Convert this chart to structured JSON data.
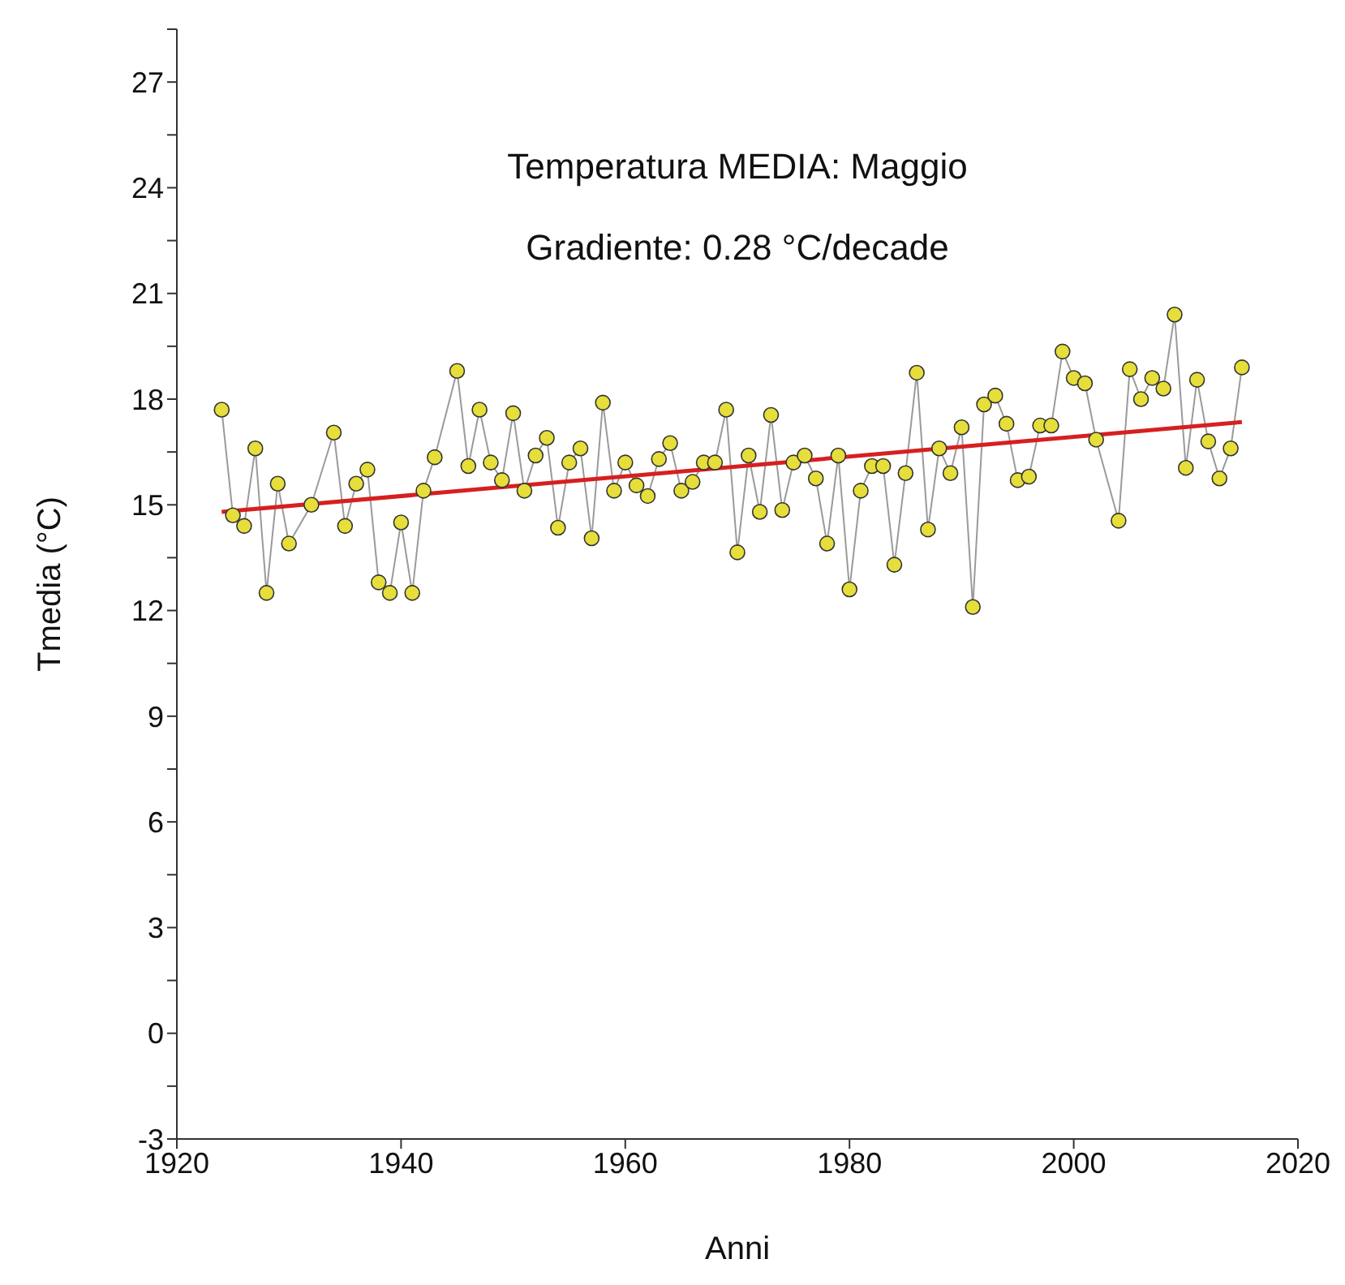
{
  "chart_data": {
    "type": "line",
    "title": "Temperatura MEDIA: Maggio",
    "annotations": [
      "Gradiente: 0.28 °C/decade"
    ],
    "xlabel": "Anni",
    "ylabel": "Tmedia (°C)",
    "xlim": [
      1920,
      2020
    ],
    "xticks": [
      1920,
      1940,
      1960,
      1980,
      2000,
      2020
    ],
    "ylim": [
      -3,
      28.5
    ],
    "yticks": [
      -3,
      {
        "value": -1.5,
        "label": null
      },
      0,
      {
        "value": 1.5,
        "label": null
      },
      3,
      {
        "value": 4.5,
        "label": null
      },
      6,
      {
        "value": 7.5,
        "label": null
      },
      9,
      {
        "value": 10.5,
        "label": null
      },
      12,
      {
        "value": 13.5,
        "label": null
      },
      15,
      {
        "value": 16.5,
        "label": null
      },
      18,
      {
        "value": 19.5,
        "label": null
      },
      21,
      {
        "value": 22.5,
        "label": null
      },
      24,
      {
        "value": 25.5,
        "label": null
      },
      27,
      {
        "value": 28.5,
        "label": null
      }
    ],
    "marker": "circle",
    "series": [
      {
        "color": "#e6de3a",
        "x": [
          1924,
          1925,
          1926,
          1927,
          1928,
          1929,
          1930,
          1932,
          1934,
          1935,
          1936,
          1937,
          1938,
          1939,
          1940,
          1941,
          1942,
          1943,
          1945,
          1946,
          1947,
          1948,
          1949,
          1950,
          1951,
          1952,
          1953,
          1954,
          1955,
          1956,
          1957,
          1958,
          1959,
          1960,
          1961,
          1962,
          1963,
          1964,
          1965,
          1966,
          1967,
          1968,
          1969,
          1970,
          1971,
          1972,
          1973,
          1974,
          1975,
          1976,
          1977,
          1978,
          1979,
          1980,
          1981,
          1982,
          1983,
          1984,
          1985,
          1986,
          1987,
          1988,
          1989,
          1990,
          1991,
          1992,
          1993,
          1994,
          1995,
          1996,
          1997,
          1998,
          1999,
          2000,
          2001,
          2002,
          2004,
          2005,
          2006,
          2007,
          2008,
          2009,
          2010,
          2011,
          2012,
          2013,
          2014,
          2015
        ],
        "values": [
          17.7,
          14.7,
          14.4,
          16.6,
          12.5,
          15.6,
          13.9,
          15.0,
          17.05,
          14.4,
          15.6,
          16.0,
          12.8,
          12.5,
          14.5,
          12.5,
          15.4,
          16.35,
          18.8,
          16.1,
          17.7,
          16.2,
          15.7,
          17.6,
          15.4,
          16.4,
          16.9,
          14.35,
          16.2,
          16.6,
          14.05,
          17.9,
          15.4,
          16.2,
          15.55,
          15.25,
          16.3,
          16.75,
          15.4,
          15.65,
          16.2,
          16.2,
          17.7,
          13.65,
          16.4,
          14.8,
          17.55,
          14.85,
          16.2,
          16.4,
          15.75,
          13.9,
          16.4,
          12.6,
          15.4,
          16.1,
          16.1,
          13.3,
          15.9,
          18.75,
          14.3,
          16.6,
          15.9,
          17.2,
          12.1,
          17.85,
          18.1,
          17.3,
          15.7,
          15.8,
          17.25,
          17.25,
          19.35,
          18.6,
          18.45,
          16.85,
          14.55,
          18.85,
          18.0,
          18.6,
          18.3,
          20.4,
          16.05,
          18.55,
          16.8,
          15.75,
          16.6,
          18.9
        ]
      },
      {
        "color": "#d62020",
        "marker": "none",
        "x": [
          1924,
          2015
        ],
        "values": [
          14.8,
          17.35
        ]
      }
    ]
  }
}
